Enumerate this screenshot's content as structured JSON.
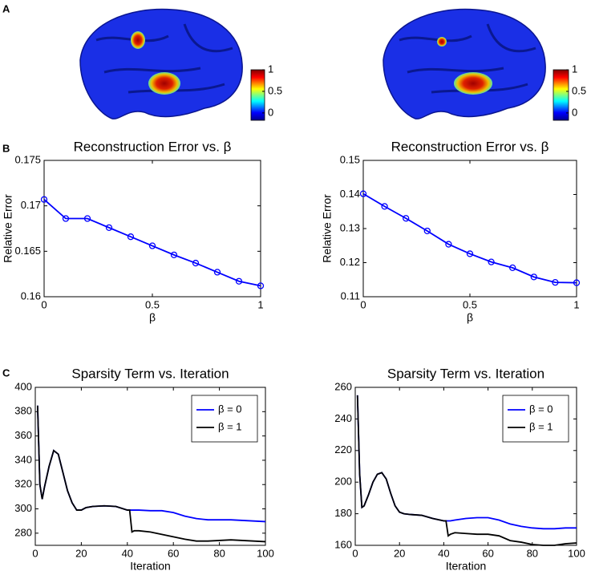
{
  "panel_labels": [
    "A",
    "B",
    "C"
  ],
  "chart_data": [
    {
      "type": "colorbar",
      "colormap": "jet",
      "ylim": [
        -0.17,
        1
      ],
      "yticks": [
        0,
        0.5,
        1
      ]
    },
    {
      "type": "colorbar",
      "colormap": "jet",
      "ylim": [
        -0.17,
        1
      ],
      "yticks": [
        0,
        0.5,
        1
      ]
    },
    {
      "type": "line",
      "title": "Reconstruction Error vs. β",
      "xlabel": "β",
      "ylabel": "Relative Error",
      "marker": "o",
      "color": "#0000ff",
      "x": [
        0,
        0.1,
        0.2,
        0.3,
        0.4,
        0.5,
        0.6,
        0.7,
        0.8,
        0.9,
        1
      ],
      "values": [
        0.1707,
        0.1686,
        0.1686,
        0.1676,
        0.1666,
        0.1656,
        0.1646,
        0.1637,
        0.1627,
        0.1617,
        0.1612
      ],
      "xlim": [
        0,
        1
      ],
      "xticks": [
        0,
        0.5,
        1
      ],
      "ylim": [
        0.16,
        0.175
      ],
      "yticks": [
        0.16,
        0.165,
        0.17,
        0.175
      ]
    },
    {
      "type": "line",
      "title": "Reconstruction Error vs. β",
      "xlabel": "β",
      "ylabel": "Relative Error",
      "marker": "o",
      "color": "#0000ff",
      "x": [
        0,
        0.1,
        0.2,
        0.3,
        0.4,
        0.5,
        0.6,
        0.7,
        0.8,
        0.9,
        1
      ],
      "values": [
        0.1402,
        0.1365,
        0.133,
        0.1293,
        0.1254,
        0.1226,
        0.1202,
        0.1185,
        0.1158,
        0.1142,
        0.1141
      ],
      "xlim": [
        0,
        1
      ],
      "xticks": [
        0,
        0.5,
        1
      ],
      "ylim": [
        0.11,
        0.15
      ],
      "yticks": [
        0.11,
        0.12,
        0.13,
        0.14,
        0.15
      ]
    },
    {
      "type": "line",
      "title": "Sparsity Term vs. Iteration",
      "xlabel": "Iteration",
      "legend": "northeast",
      "x": [
        1,
        2,
        3,
        4,
        6,
        8,
        10,
        12,
        14,
        16,
        18,
        20,
        22,
        25,
        30,
        35,
        40,
        41,
        42,
        43,
        45,
        50,
        55,
        60,
        65,
        70,
        75,
        80,
        85,
        90,
        95,
        100
      ],
      "series": [
        {
          "name": "β = 0",
          "color": "#0000ff",
          "values": [
            385,
            320,
            308,
            318,
            335,
            348,
            345,
            330,
            315,
            305,
            299,
            299,
            301,
            302,
            302.5,
            302,
            299,
            299,
            299,
            299,
            299,
            298.5,
            298.5,
            297,
            294,
            292,
            291,
            291,
            291,
            290.5,
            290,
            289.5
          ]
        },
        {
          "name": "β = 1",
          "color": "#000000",
          "values": [
            385,
            320,
            308,
            318,
            335,
            348,
            345,
            330,
            315,
            305,
            299,
            299,
            301,
            302,
            302.5,
            302,
            299,
            299,
            281,
            282,
            282,
            281,
            279,
            277,
            275,
            273.5,
            273.5,
            274,
            274.5,
            274,
            273.5,
            273
          ]
        }
      ],
      "xlim": [
        0,
        100
      ],
      "xticks": [
        0,
        20,
        40,
        60,
        80,
        100
      ],
      "ylim": [
        270,
        400
      ],
      "yticks": [
        280,
        300,
        320,
        340,
        360,
        380,
        400
      ]
    },
    {
      "type": "line",
      "title": "Sparsity Term vs. Iteration",
      "xlabel": "Iteration",
      "legend": "northeast",
      "x": [
        1,
        2,
        3,
        4,
        6,
        8,
        10,
        12,
        14,
        16,
        18,
        20,
        22,
        25,
        30,
        35,
        40,
        41,
        42,
        43,
        45,
        50,
        55,
        60,
        65,
        70,
        75,
        80,
        85,
        90,
        95,
        100
      ],
      "series": [
        {
          "name": "β = 0",
          "color": "#0000ff",
          "values": [
            255,
            205,
            184,
            185,
            192,
            200,
            205,
            206,
            202,
            193,
            185,
            181,
            180,
            179.5,
            179,
            177,
            175.5,
            175.5,
            175.5,
            175.5,
            176,
            177,
            177.5,
            177.5,
            176,
            173.5,
            172,
            171,
            170.5,
            170.5,
            171,
            171
          ]
        },
        {
          "name": "β = 1",
          "color": "#000000",
          "values": [
            255,
            205,
            184,
            185,
            192,
            200,
            205,
            206,
            202,
            193,
            185,
            181,
            180,
            179.5,
            179,
            177,
            175.5,
            175.5,
            166,
            167,
            168,
            167.5,
            167,
            167,
            166,
            163,
            162,
            160.5,
            160,
            160,
            161,
            161.5
          ]
        }
      ],
      "xlim": [
        0,
        100
      ],
      "xticks": [
        0,
        20,
        40,
        60,
        80,
        100
      ],
      "ylim": [
        160,
        260
      ],
      "yticks": [
        160,
        180,
        200,
        220,
        240,
        260
      ]
    }
  ]
}
